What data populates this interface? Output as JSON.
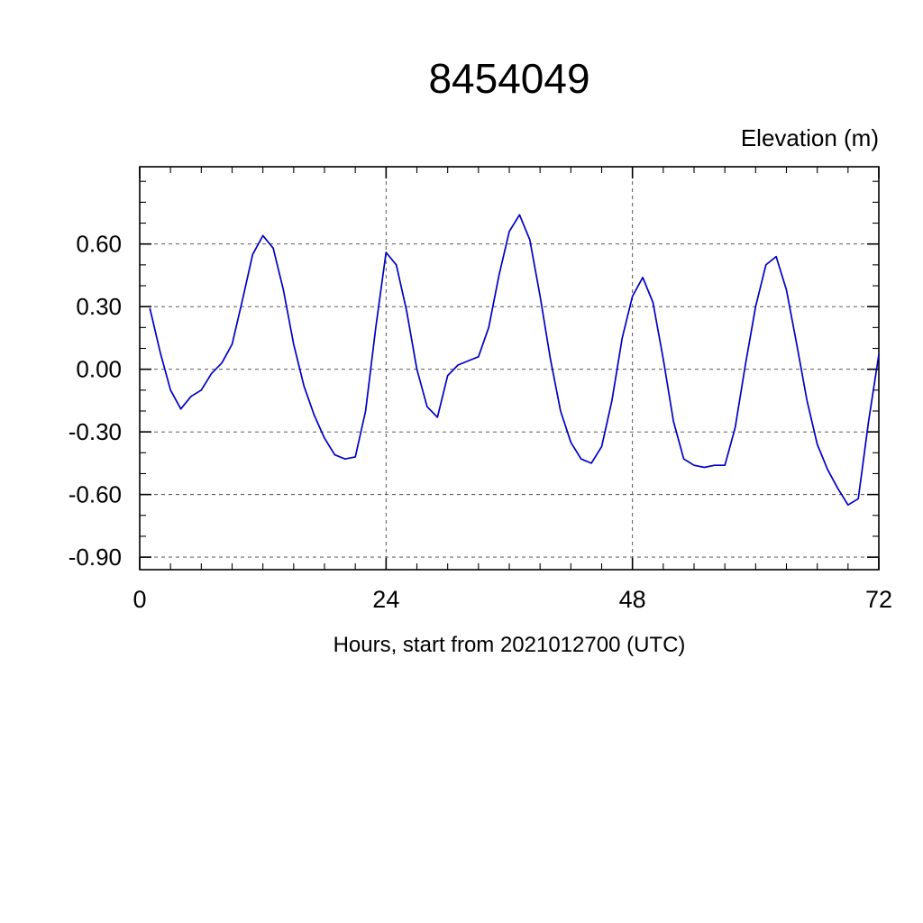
{
  "page": {
    "background": "#ffffff"
  },
  "chart_data": {
    "type": "line",
    "title": "8454049",
    "right_label": "Elevation (m)",
    "xlabel": "Hours, start from 2021012700 (UTC)",
    "xlim": [
      0,
      72
    ],
    "ylim": [
      -0.96,
      0.97
    ],
    "x_ticks": [
      0,
      24,
      48,
      72
    ],
    "x_tick_labels": [
      "0",
      "24",
      "48",
      "72"
    ],
    "x_minor_step": 3,
    "y_ticks": [
      0.6,
      0.3,
      0.0,
      -0.3,
      -0.6,
      -0.9
    ],
    "y_tick_labels": [
      "0.60",
      "0.30",
      "0.00",
      "-0.30",
      "-0.60",
      "-0.90"
    ],
    "y_minor_step": 0.1,
    "grid": "dashed",
    "grid_color": "#444444",
    "frame_color": "#000000",
    "line_color": "#0000c0",
    "series": [
      {
        "name": "elevation",
        "x": [
          1,
          2,
          3,
          4,
          5,
          6,
          7,
          8,
          9,
          10,
          11,
          12,
          13,
          14,
          15,
          16,
          17,
          18,
          19,
          20,
          21,
          22,
          23,
          24,
          25,
          26,
          27,
          28,
          29,
          30,
          31,
          32,
          33,
          34,
          35,
          36,
          37,
          38,
          39,
          40,
          41,
          42,
          43,
          44,
          45,
          46,
          47,
          48,
          49,
          50,
          51,
          52,
          53,
          54,
          55,
          56,
          57,
          58,
          59,
          60,
          61,
          62,
          63,
          64,
          65,
          66,
          67,
          68,
          69,
          70,
          71,
          72
        ],
        "y": [
          0.29,
          0.08,
          -0.1,
          -0.19,
          -0.13,
          -0.1,
          -0.02,
          0.03,
          0.12,
          0.33,
          0.55,
          0.64,
          0.58,
          0.38,
          0.12,
          -0.08,
          -0.22,
          -0.33,
          -0.41,
          -0.43,
          -0.42,
          -0.2,
          0.2,
          0.56,
          0.5,
          0.28,
          0.0,
          -0.18,
          -0.23,
          -0.03,
          0.02,
          0.04,
          0.06,
          0.2,
          0.45,
          0.66,
          0.74,
          0.62,
          0.35,
          0.05,
          -0.2,
          -0.35,
          -0.43,
          -0.45,
          -0.37,
          -0.15,
          0.15,
          0.35,
          0.44,
          0.32,
          0.05,
          -0.25,
          -0.43,
          -0.46,
          -0.47,
          -0.46,
          -0.46,
          -0.28,
          0.02,
          0.3,
          0.5,
          0.54,
          0.38,
          0.12,
          -0.15,
          -0.36,
          -0.48,
          -0.57,
          -0.65,
          -0.62,
          -0.25,
          0.07
        ]
      }
    ]
  }
}
